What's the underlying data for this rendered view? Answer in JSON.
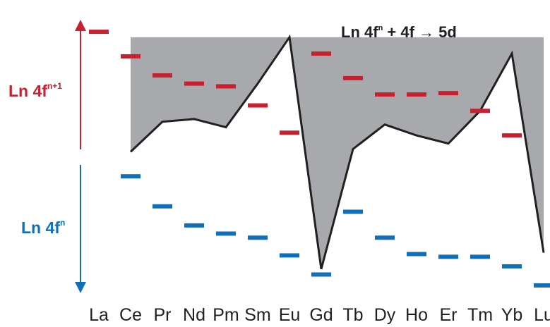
{
  "title": {
    "prefix": "Ln 4f",
    "sup": "n",
    "suffix": " + 4f → 5d"
  },
  "labels": {
    "upper": {
      "base": "Ln 4f",
      "sup": "n+1",
      "color": "#c8202e"
    },
    "lower": {
      "base": "Ln 4f",
      "sup": "n",
      "color": "#0f6fb8"
    }
  },
  "colors": {
    "upper_bar": "#c8202e",
    "lower_bar": "#0f6fb8",
    "shade": "#a7a9ac",
    "line": "#231f20"
  },
  "elements": [
    "La",
    "Ce",
    "Pr",
    "Nd",
    "Pm",
    "Sm",
    "Eu",
    "Gd",
    "Tb",
    "Dy",
    "Ho",
    "Er",
    "Tm",
    "Yb",
    "Lu"
  ],
  "chart_data": {
    "type": "line",
    "x": [
      "La",
      "Ce",
      "Pr",
      "Nd",
      "Pm",
      "Sm",
      "Eu",
      "Gd",
      "Tb",
      "Dy",
      "Ho",
      "Er",
      "Tm",
      "Yb",
      "Lu"
    ],
    "ylim": [
      0,
      100
    ],
    "series": [
      {
        "key": "upper",
        "values": [
          93,
          84,
          77,
          74,
          73,
          66,
          56,
          85,
          76,
          70,
          70,
          70.5,
          64,
          55,
          null
        ]
      },
      {
        "key": "lower",
        "values": [
          null,
          40,
          29,
          22,
          19,
          17.5,
          11,
          4,
          27,
          17.5,
          11.5,
          10.5,
          10.5,
          7,
          0
        ]
      },
      {
        "key": "gap",
        "values": [
          null,
          49,
          60,
          61,
          58,
          74,
          91,
          6,
          50,
          59,
          55,
          52,
          64,
          85,
          12
        ]
      }
    ]
  }
}
